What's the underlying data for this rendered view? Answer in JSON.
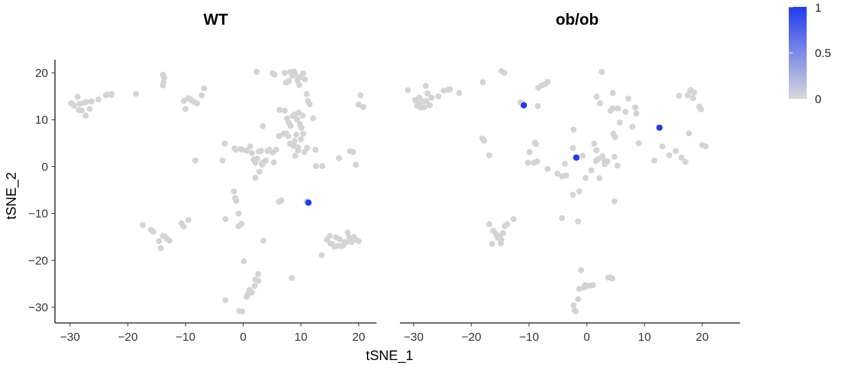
{
  "chart_data": [
    {
      "type": "scatter",
      "title": "WT",
      "xlabel": "tSNE_1",
      "ylabel": "tSNE_2",
      "xlim": [
        -33,
        23
      ],
      "ylim": [
        -33.5,
        23
      ],
      "xticks": [
        "−30",
        "−20",
        "−10",
        "0",
        "10",
        "20"
      ],
      "yticks": [
        "−30",
        "−20",
        "−10",
        "0",
        "10",
        "20"
      ],
      "grid": false,
      "background_points": [
        [
          -29.8,
          13.5
        ],
        [
          -29.3,
          13.0
        ],
        [
          -28.7,
          14.9
        ],
        [
          -28.3,
          13.4
        ],
        [
          -28.5,
          12.1
        ],
        [
          -28.0,
          12.0
        ],
        [
          -27.6,
          13.6
        ],
        [
          -27.2,
          13.8
        ],
        [
          -27.3,
          10.9
        ],
        [
          -26.6,
          12.3
        ],
        [
          -26.3,
          13.9
        ],
        [
          -25.1,
          14.3
        ],
        [
          -23.8,
          15.2
        ],
        [
          -23.5,
          15.4
        ],
        [
          -22.9,
          15.3
        ],
        [
          -22.8,
          15.5
        ],
        [
          -18.6,
          15.5
        ],
        [
          -13.9,
          19.6
        ],
        [
          -13.7,
          19.0
        ],
        [
          -13.8,
          17.9
        ],
        [
          -13.9,
          17.3
        ],
        [
          -10.3,
          14.0
        ],
        [
          -10.0,
          12.3
        ],
        [
          -9.5,
          14.6
        ],
        [
          -9.1,
          14.3
        ],
        [
          -8.6,
          13.8
        ],
        [
          -8.0,
          13.5
        ],
        [
          -7.2,
          15.2
        ],
        [
          -6.8,
          16.7
        ],
        [
          -8.3,
          1.3
        ],
        [
          -17.4,
          -12.5
        ],
        [
          -16.0,
          -13.5
        ],
        [
          -15.6,
          -13.9
        ],
        [
          -14.6,
          -15.9
        ],
        [
          -14.3,
          -17.4
        ],
        [
          -13.9,
          -14.8
        ],
        [
          -13.6,
          -14.9
        ],
        [
          -13.2,
          -15.4
        ],
        [
          -12.8,
          -15.8
        ],
        [
          -10.7,
          -12.1
        ],
        [
          -10.3,
          -12.8
        ],
        [
          -9.5,
          -11.4
        ],
        [
          2.3,
          20.2
        ],
        [
          5.1,
          19.9
        ],
        [
          5.4,
          19.6
        ],
        [
          7.2,
          20.0
        ],
        [
          7.4,
          17.9
        ],
        [
          7.9,
          18.3
        ],
        [
          8.2,
          20.2
        ],
        [
          8.5,
          19.4
        ],
        [
          8.8,
          20.3
        ],
        [
          9.1,
          19.6
        ],
        [
          9.4,
          18.4
        ],
        [
          9.7,
          17.4
        ],
        [
          9.9,
          19.1
        ],
        [
          10.4,
          19.9
        ],
        [
          10.7,
          18.6
        ],
        [
          11.0,
          15.5
        ],
        [
          11.2,
          14.0
        ],
        [
          11.5,
          13.3
        ],
        [
          12.1,
          10.3
        ],
        [
          3.4,
          8.6
        ],
        [
          6.3,
          12.1
        ],
        [
          7.2,
          11.9
        ],
        [
          7.6,
          10.3
        ],
        [
          7.9,
          9.4
        ],
        [
          8.2,
          8.7
        ],
        [
          8.6,
          10.8
        ],
        [
          8.9,
          11.1
        ],
        [
          9.3,
          10.1
        ],
        [
          9.6,
          11.5
        ],
        [
          9.8,
          9.1
        ],
        [
          10.1,
          8.3
        ],
        [
          10.3,
          10.9
        ],
        [
          7.0,
          7.0
        ],
        [
          7.4,
          7.1
        ],
        [
          7.8,
          6.5
        ],
        [
          6.2,
          6.5
        ],
        [
          8.1,
          4.9
        ],
        [
          8.7,
          4.4
        ],
        [
          8.9,
          5.5
        ],
        [
          9.5,
          4.1
        ],
        [
          10.0,
          5.8
        ],
        [
          10.4,
          7.0
        ],
        [
          9.2,
          6.8
        ],
        [
          5.7,
          3.6
        ],
        [
          -3.2,
          4.9
        ],
        [
          -3.6,
          1.3
        ],
        [
          -1.5,
          3.9
        ],
        [
          -1.3,
          3.6
        ],
        [
          -0.5,
          3.8
        ],
        [
          -0.2,
          3.6
        ],
        [
          0.6,
          3.4
        ],
        [
          1.2,
          4.3
        ],
        [
          1.5,
          2.9
        ],
        [
          1.8,
          1.5
        ],
        [
          2.1,
          0.8
        ],
        [
          2.4,
          1.7
        ],
        [
          2.7,
          3.2
        ],
        [
          3.1,
          3.4
        ],
        [
          3.3,
          0.4
        ],
        [
          3.6,
          1.0
        ],
        [
          3.9,
          1.3
        ],
        [
          4.2,
          3.3
        ],
        [
          4.5,
          3.6
        ],
        [
          5.1,
          3.0
        ],
        [
          5.3,
          0.9
        ],
        [
          2.8,
          -1.1
        ],
        [
          2.1,
          -2.4
        ],
        [
          3.2,
          0.7
        ],
        [
          9.0,
          2.3
        ],
        [
          9.5,
          3.4
        ],
        [
          10.6,
          3.1
        ],
        [
          11.1,
          4.0
        ],
        [
          12.5,
          3.6
        ],
        [
          12.6,
          0.1
        ],
        [
          13.7,
          0.1
        ],
        [
          16.6,
          1.8
        ],
        [
          18.5,
          3.3
        ],
        [
          19.0,
          3.1
        ],
        [
          19.5,
          0.4
        ],
        [
          20.0,
          13.2
        ],
        [
          20.3,
          15.2
        ],
        [
          20.8,
          12.7
        ],
        [
          6.2,
          -7.5
        ],
        [
          6.6,
          -7.2
        ],
        [
          11.0,
          -7.4
        ],
        [
          -1.6,
          -5.3
        ],
        [
          -1.4,
          -6.7
        ],
        [
          -1.2,
          -7.3
        ],
        [
          -3.1,
          -11.2
        ],
        [
          -0.8,
          -10.0
        ],
        [
          -0.8,
          -12.7
        ],
        [
          -0.3,
          -12.2
        ],
        [
          3.5,
          -15.8
        ],
        [
          8.4,
          -23.8
        ],
        [
          13.6,
          -18.9
        ],
        [
          14.5,
          -15.6
        ],
        [
          15.0,
          -14.8
        ],
        [
          15.1,
          -16.4
        ],
        [
          15.4,
          -16.5
        ],
        [
          15.8,
          -17.1
        ],
        [
          16.1,
          -15.1
        ],
        [
          16.4,
          -16.9
        ],
        [
          16.7,
          -15.5
        ],
        [
          17.0,
          -17.0
        ],
        [
          17.3,
          -16.8
        ],
        [
          17.6,
          -16.1
        ],
        [
          17.8,
          -16.2
        ],
        [
          18.1,
          -14.1
        ],
        [
          18.4,
          -15.2
        ],
        [
          18.8,
          -16.1
        ],
        [
          19.2,
          -15.0
        ],
        [
          19.4,
          -15.6
        ],
        [
          20.0,
          -15.9
        ],
        [
          -3.1,
          -28.5
        ],
        [
          0.1,
          -20.2
        ],
        [
          2.0,
          -25.5
        ],
        [
          1.5,
          -26.9
        ],
        [
          1.1,
          -26.3
        ],
        [
          0.8,
          -27.2
        ],
        [
          0.6,
          -27.8
        ],
        [
          2.1,
          -24.1
        ],
        [
          2.6,
          -24.4
        ],
        [
          2.6,
          -22.9
        ],
        [
          -0.2,
          -30.9
        ],
        [
          -0.7,
          -30.8
        ]
      ],
      "highlighted_points": [
        [
          11.3,
          -7.7
        ]
      ]
    },
    {
      "type": "scatter",
      "title": "ob/ob",
      "xlabel": "tSNE_1",
      "xlim": [
        -33,
        23
      ],
      "ylim": [
        -33.5,
        23
      ],
      "xticks": [
        "−30",
        "−20",
        "−10",
        "0",
        "10",
        "20"
      ],
      "grid": false,
      "background_points": [
        [
          -31.0,
          16.3
        ],
        [
          -29.7,
          14.2
        ],
        [
          -29.4,
          13.0
        ],
        [
          -29.1,
          13.4
        ],
        [
          -29.0,
          14.7
        ],
        [
          -28.8,
          12.6
        ],
        [
          -28.4,
          13.9
        ],
        [
          -28.1,
          12.7
        ],
        [
          -27.8,
          14.0
        ],
        [
          -27.9,
          17.2
        ],
        [
          -27.6,
          15.6
        ],
        [
          -27.2,
          13.1
        ],
        [
          -26.9,
          14.7
        ],
        [
          -25.7,
          15.0
        ],
        [
          -24.8,
          16.2
        ],
        [
          -24.0,
          16.4
        ],
        [
          -23.7,
          16.5
        ],
        [
          -22.1,
          15.7
        ],
        [
          -18.0,
          18.0
        ],
        [
          -14.8,
          20.4
        ],
        [
          -14.3,
          20.0
        ],
        [
          -8.4,
          16.8
        ],
        [
          -7.8,
          17.3
        ],
        [
          -7.2,
          17.6
        ],
        [
          -6.8,
          18.1
        ],
        [
          -11.5,
          13.7
        ],
        [
          -11.0,
          13.0
        ],
        [
          -8.5,
          12.9
        ],
        [
          -18.1,
          6.0
        ],
        [
          -17.8,
          5.5
        ],
        [
          -16.9,
          2.4
        ],
        [
          -9.9,
          3.1
        ],
        [
          -10.2,
          0.8
        ],
        [
          -9.0,
          5.1
        ],
        [
          -8.8,
          4.8
        ],
        [
          -9.2,
          0.8
        ],
        [
          -8.6,
          1.1
        ],
        [
          -6.8,
          -0.5
        ],
        [
          -5.1,
          -1.5
        ],
        [
          -4.3,
          -2.1
        ],
        [
          -3.6,
          -1.9
        ],
        [
          -3.8,
          0.6
        ],
        [
          -2.4,
          4.0
        ],
        [
          -2.3,
          7.9
        ],
        [
          -2.0,
          1.9
        ],
        [
          -1.3,
          -5.3
        ],
        [
          -2.4,
          -6.0
        ],
        [
          -4.3,
          -11.0
        ],
        [
          -1.5,
          -11.7
        ],
        [
          -16.9,
          -12.3
        ],
        [
          -16.2,
          -13.7
        ],
        [
          -16.4,
          -16.5
        ],
        [
          -15.7,
          -14.4
        ],
        [
          -15.4,
          -15.2
        ],
        [
          -15.1,
          -15.0
        ],
        [
          -14.8,
          -15.6
        ],
        [
          -14.9,
          -16.4
        ],
        [
          -14.5,
          -14.2
        ],
        [
          -13.8,
          -12.3
        ],
        [
          -14.2,
          -12.7
        ],
        [
          -12.7,
          -11.2
        ],
        [
          2.6,
          20.2
        ],
        [
          2.3,
          13.5
        ],
        [
          1.7,
          14.9
        ],
        [
          4.5,
          15.7
        ],
        [
          4.5,
          12.4
        ],
        [
          4.1,
          11.9
        ],
        [
          5.4,
          12.4
        ],
        [
          6.7,
          11.7
        ],
        [
          7.2,
          14.5
        ],
        [
          8.4,
          12.6
        ],
        [
          8.6,
          11.3
        ],
        [
          5.7,
          9.4
        ],
        [
          7.9,
          8.5
        ],
        [
          4.9,
          6.3
        ],
        [
          4.6,
          7.0
        ],
        [
          1.3,
          4.9
        ],
        [
          -0.7,
          2.3
        ],
        [
          1.7,
          3.5
        ],
        [
          2.0,
          1.6
        ],
        [
          1.6,
          1.2
        ],
        [
          2.7,
          2.2
        ],
        [
          3.1,
          1.2
        ],
        [
          3.6,
          1.1
        ],
        [
          3.1,
          0.5
        ],
        [
          0.8,
          -0.8
        ],
        [
          -0.2,
          -2.4
        ],
        [
          4.8,
          2.1
        ],
        [
          5.3,
          0.2
        ],
        [
          4.8,
          -7.4
        ],
        [
          2.2,
          -2.5
        ],
        [
          9.0,
          5.0
        ],
        [
          11.7,
          1.3
        ],
        [
          13.1,
          4.3
        ],
        [
          14.3,
          2.4
        ],
        [
          15.4,
          3.3
        ],
        [
          16.4,
          1.9
        ],
        [
          17.1,
          1.0
        ],
        [
          17.7,
          7.1
        ],
        [
          17.5,
          15.2
        ],
        [
          18.0,
          16.3
        ],
        [
          18.4,
          14.6
        ],
        [
          18.6,
          15.8
        ],
        [
          19.5,
          12.8
        ],
        [
          19.8,
          12.2
        ],
        [
          20.0,
          4.6
        ],
        [
          20.6,
          4.3
        ],
        [
          16.0,
          15.1
        ],
        [
          17.9,
          16.2
        ],
        [
          -1.0,
          -22.1
        ],
        [
          -0.5,
          -25.8
        ],
        [
          -0.3,
          -25.3
        ],
        [
          -0.1,
          -25.6
        ],
        [
          0.6,
          -25.4
        ],
        [
          1.1,
          -25.3
        ],
        [
          -1.3,
          -26.1
        ],
        [
          -2.3,
          -29.6
        ],
        [
          -1.5,
          -28.3
        ],
        [
          -1.9,
          -30.9
        ],
        [
          -2.1,
          -30.7
        ],
        [
          3.7,
          -23.7
        ],
        [
          4.0,
          -23.6
        ],
        [
          4.4,
          -23.9
        ]
      ],
      "highlighted_points": [
        [
          -10.9,
          13.1
        ],
        [
          -1.8,
          1.9
        ],
        [
          12.6,
          8.3
        ]
      ]
    }
  ],
  "legend": {
    "labels": [
      "1",
      "0.5",
      "0"
    ],
    "low_color": "#d9d9d9",
    "high_color": "#1f3cf0"
  },
  "colors": {
    "background_point": "#d4d4d4",
    "highlight_point": "#1f3cf0"
  }
}
